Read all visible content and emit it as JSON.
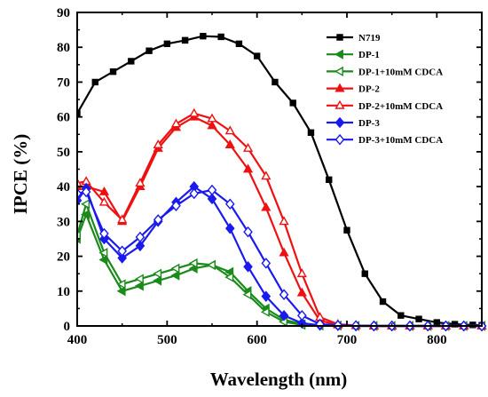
{
  "chart_data": {
    "type": "line",
    "xlabel": "Wavelength (nm)",
    "ylabel": "IPCE (%)",
    "xlim": [
      400,
      850
    ],
    "ylim": [
      0,
      90
    ],
    "xticks": [
      400,
      500,
      600,
      700,
      800
    ],
    "yticks": [
      0,
      10,
      20,
      30,
      40,
      50,
      60,
      70,
      80,
      90
    ],
    "legend_position": "top-right",
    "series": [
      {
        "name": "N719",
        "color": "#000000",
        "marker": "square",
        "filled": true,
        "x": [
          400,
          420,
          440,
          460,
          480,
          500,
          520,
          540,
          560,
          580,
          600,
          620,
          640,
          660,
          680,
          700,
          720,
          740,
          760,
          780,
          800,
          820,
          840,
          850
        ],
        "y": [
          61,
          70,
          73,
          76,
          79,
          81,
          82,
          83.2,
          83,
          81,
          77.5,
          70,
          64,
          55.5,
          42,
          27.5,
          15,
          7,
          3,
          2,
          1,
          0.5,
          0.3,
          0.2
        ]
      },
      {
        "name": "DP-1",
        "color": "#1a8a1a",
        "marker": "triangle-left",
        "filled": true,
        "x": [
          400,
          410,
          430,
          450,
          470,
          490,
          510,
          530,
          550,
          570,
          590,
          610,
          630,
          650,
          670,
          690,
          710,
          730,
          750,
          770,
          790,
          810,
          830,
          850
        ],
        "y": [
          25,
          32,
          19,
          10,
          11.5,
          13,
          14.5,
          16.5,
          17.5,
          15.5,
          10,
          5,
          1.8,
          0.5,
          0.2,
          0.1,
          0,
          0,
          0,
          0,
          0,
          0,
          0,
          0
        ]
      },
      {
        "name": "DP-1+10mM CDCA",
        "color": "#1a8a1a",
        "marker": "triangle-left",
        "filled": false,
        "x": [
          400,
          410,
          430,
          450,
          470,
          490,
          510,
          530,
          550,
          570,
          590,
          610,
          630,
          650,
          670,
          690,
          710,
          730,
          750,
          770,
          790,
          810,
          830,
          850
        ],
        "y": [
          26,
          35,
          21,
          12,
          13.5,
          15,
          16.5,
          18,
          17.5,
          14,
          9,
          4,
          1.2,
          0.3,
          0.1,
          0.1,
          0,
          0,
          0,
          0,
          0,
          0,
          0,
          0
        ]
      },
      {
        "name": "DP-2",
        "color": "#ee1111",
        "marker": "triangle-up",
        "filled": true,
        "x": [
          400,
          410,
          430,
          450,
          470,
          490,
          510,
          530,
          550,
          570,
          590,
          610,
          630,
          650,
          670,
          690,
          710,
          730,
          750,
          770,
          790,
          810,
          830,
          850
        ],
        "y": [
          40,
          40,
          38.5,
          30,
          40,
          51,
          57,
          60,
          57.5,
          52,
          45,
          34,
          21,
          9.5,
          1.5,
          0.3,
          0.1,
          0,
          0,
          0,
          0,
          0,
          0,
          0
        ]
      },
      {
        "name": "DP-2+10mM CDCA",
        "color": "#ee1111",
        "marker": "triangle-up",
        "filled": false,
        "x": [
          400,
          410,
          430,
          450,
          470,
          490,
          510,
          530,
          550,
          570,
          590,
          610,
          630,
          650,
          670,
          690,
          710,
          730,
          750,
          770,
          790,
          810,
          830,
          850
        ],
        "y": [
          41,
          41.5,
          35.5,
          30.5,
          41,
          52,
          58,
          61,
          59.5,
          56,
          51,
          43,
          30,
          15,
          2.5,
          0.5,
          0.1,
          0,
          0,
          0,
          0,
          0,
          0,
          0
        ]
      },
      {
        "name": "DP-3",
        "color": "#1a1aee",
        "marker": "diamond",
        "filled": true,
        "x": [
          400,
          410,
          430,
          450,
          470,
          490,
          510,
          530,
          550,
          570,
          590,
          610,
          630,
          650,
          670,
          690,
          710,
          730,
          750,
          770,
          790,
          810,
          830,
          850
        ],
        "y": [
          36,
          39.5,
          25,
          19.5,
          23,
          30,
          35.5,
          40,
          36.5,
          28,
          17,
          8.5,
          3,
          0.8,
          0.2,
          0.1,
          0,
          0,
          0,
          0,
          0,
          0,
          0,
          0
        ]
      },
      {
        "name": "DP-3+10mM CDCA",
        "color": "#1a1aee",
        "marker": "diamond",
        "filled": false,
        "x": [
          400,
          410,
          430,
          450,
          470,
          490,
          510,
          530,
          550,
          570,
          590,
          610,
          630,
          650,
          670,
          690,
          710,
          730,
          750,
          770,
          790,
          810,
          830,
          850
        ],
        "y": [
          38,
          38.5,
          26.5,
          21.5,
          25.5,
          30.5,
          34.5,
          38,
          39,
          35,
          27,
          18,
          9,
          3,
          0.5,
          0.2,
          0.1,
          0,
          0,
          0,
          0,
          0,
          0,
          0
        ]
      }
    ]
  }
}
